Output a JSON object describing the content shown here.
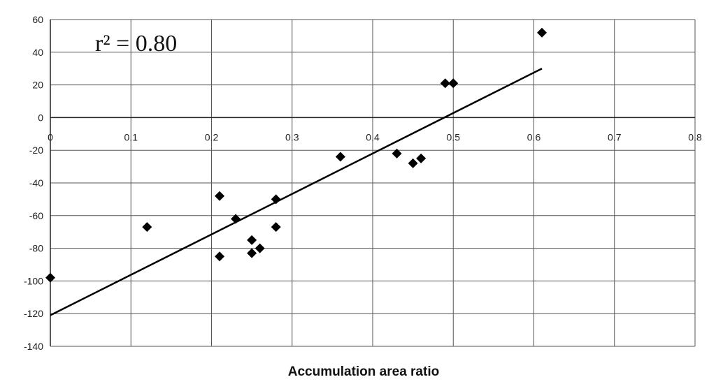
{
  "chart_data": {
    "type": "scatter",
    "xlabel": "Accumulation area ratio",
    "ylabel": "",
    "annotation": "r² = 0.80",
    "xlim": [
      0,
      0.8
    ],
    "ylim": [
      -140,
      60
    ],
    "xticks": [
      0,
      0.1,
      0.2,
      0.3,
      0.4,
      0.5,
      0.6,
      0.7,
      0.8
    ],
    "xtick_labels": [
      "0",
      "0.1",
      "0.2",
      "0.3",
      "0.4",
      "0.5",
      "0.6",
      "0.7",
      "0.8"
    ],
    "yticks": [
      60,
      40,
      20,
      0,
      -20,
      -40,
      -60,
      -80,
      -100,
      -120,
      -140
    ],
    "ytick_labels": [
      "60",
      "40",
      "20",
      "0",
      "-20",
      "-40",
      "-60",
      "-80",
      "-100",
      "-120",
      "-140"
    ],
    "grid": true,
    "series": [
      {
        "marker": "diamond",
        "points": [
          {
            "x": 0.0,
            "y": -98
          },
          {
            "x": 0.12,
            "y": -67
          },
          {
            "x": 0.21,
            "y": -48
          },
          {
            "x": 0.21,
            "y": -85
          },
          {
            "x": 0.23,
            "y": -62
          },
          {
            "x": 0.25,
            "y": -75
          },
          {
            "x": 0.25,
            "y": -83
          },
          {
            "x": 0.26,
            "y": -80
          },
          {
            "x": 0.28,
            "y": -50
          },
          {
            "x": 0.28,
            "y": -67
          },
          {
            "x": 0.36,
            "y": -24
          },
          {
            "x": 0.43,
            "y": -22
          },
          {
            "x": 0.45,
            "y": -28
          },
          {
            "x": 0.46,
            "y": -25
          },
          {
            "x": 0.49,
            "y": 21
          },
          {
            "x": 0.5,
            "y": 21
          },
          {
            "x": 0.61,
            "y": 52
          }
        ]
      }
    ],
    "trendline": {
      "x0": 0,
      "y0": -121,
      "x1": 0.61,
      "y1": 30
    }
  }
}
